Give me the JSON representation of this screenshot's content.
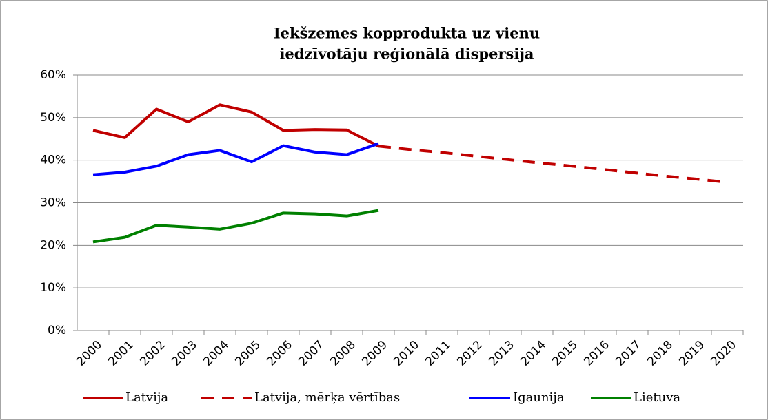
{
  "chart_data": {
    "type": "line",
    "title": [
      "Iekšzemes kopprodukta uz vienu",
      "iedzīvotāju reģionālā dispersija"
    ],
    "categories": [
      "2000",
      "2001",
      "2002",
      "2003",
      "2004",
      "2005",
      "2006",
      "2007",
      "2008",
      "2009",
      "2010",
      "2011",
      "2012",
      "2013",
      "2014",
      "2015",
      "2016",
      "2017",
      "2018",
      "2019",
      "2020"
    ],
    "series": [
      {
        "name": "Latvija",
        "color": "#c00000",
        "dashed": false,
        "values": [
          47,
          45.3,
          52,
          49,
          53,
          51.3,
          47,
          47.2,
          47.1,
          43.3,
          null,
          null,
          null,
          null,
          null,
          null,
          null,
          null,
          null,
          null,
          null
        ]
      },
      {
        "name": "Latvija, mērķa vērtības",
        "color": "#c00000",
        "dashed": true,
        "values": [
          null,
          null,
          null,
          null,
          null,
          null,
          null,
          null,
          null,
          43.3,
          42.5,
          41.8,
          41.0,
          40.2,
          39.4,
          38.7,
          37.9,
          37.1,
          36.3,
          35.6,
          34.8
        ]
      },
      {
        "name": "Igaunija",
        "color": "#0000ff",
        "dashed": false,
        "values": [
          36.6,
          37.2,
          38.6,
          41.3,
          42.3,
          39.6,
          43.4,
          41.9,
          41.3,
          43.9,
          null,
          null,
          null,
          null,
          null,
          null,
          null,
          null,
          null,
          null,
          null
        ]
      },
      {
        "name": "Lietuva",
        "color": "#008000",
        "dashed": false,
        "values": [
          20.8,
          21.9,
          24.7,
          24.3,
          23.8,
          25.2,
          27.6,
          27.4,
          26.9,
          28.2,
          null,
          null,
          null,
          null,
          null,
          null,
          null,
          null,
          null,
          null,
          null
        ]
      }
    ],
    "ylim": [
      0,
      60
    ],
    "yticks": [
      {
        "value": 0,
        "label": "0%"
      },
      {
        "value": 10,
        "label": "10%"
      },
      {
        "value": 20,
        "label": "20%"
      },
      {
        "value": 30,
        "label": "30%"
      },
      {
        "value": 40,
        "label": "40%"
      },
      {
        "value": 50,
        "label": "50%"
      },
      {
        "value": 60,
        "label": "60%"
      }
    ],
    "grid": true,
    "legend": "bottom"
  }
}
